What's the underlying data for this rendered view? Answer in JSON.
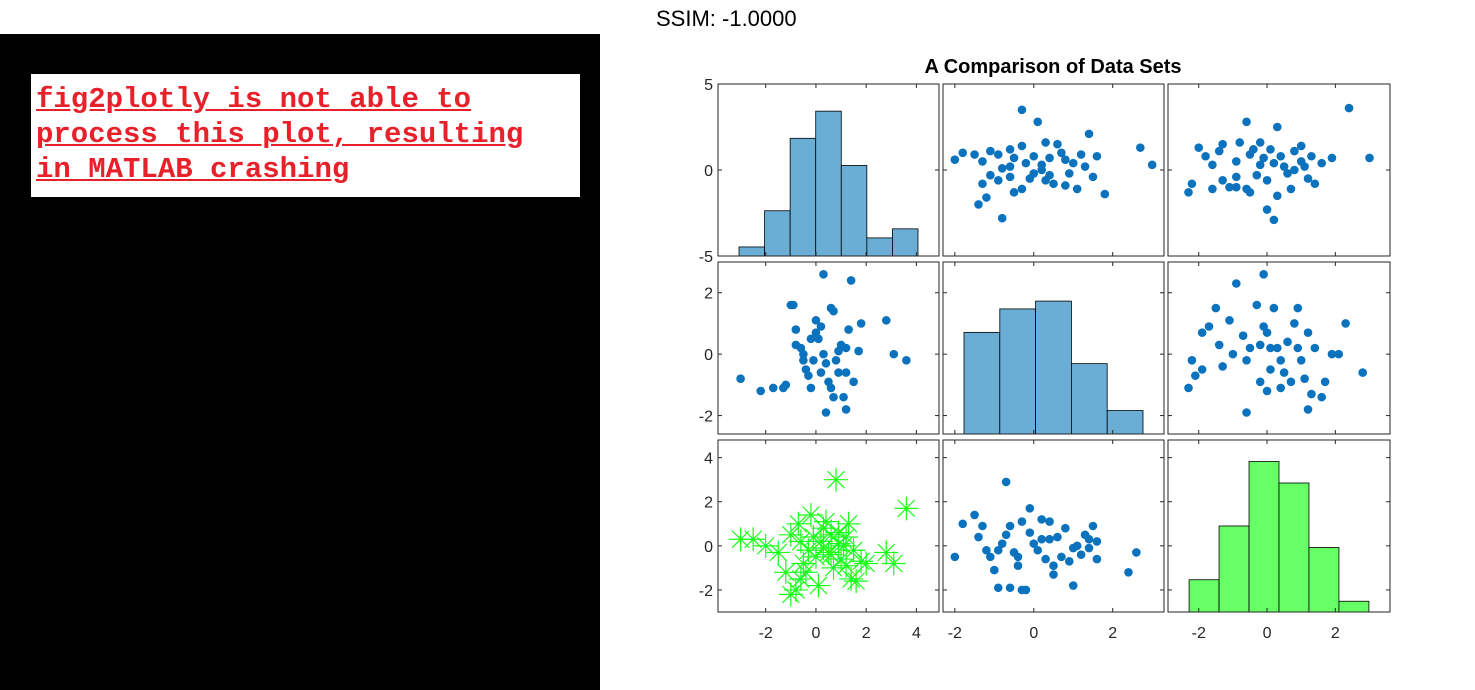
{
  "ssim_label": "SSIM: -1.0000",
  "error_message": "fig2plotly is not able to\nprocess this plot, resulting\nin MATLAB crashing",
  "colors": {
    "error_text": "#e8202a",
    "left_background": "#000000",
    "hist_fill": "#6aaed6",
    "hist_fill_green": "#66ff66",
    "scatter_blue": "#0b72bd",
    "marker_green": "#1aff1a"
  },
  "chart_data": {
    "type": "scatter",
    "layout": "3x3 plot matrix",
    "title": "A Comparison of Data Sets",
    "rows": [
      {
        "ylim": [
          -5,
          5
        ],
        "yticks": [
          -5,
          0,
          5
        ]
      },
      {
        "ylim": [
          -2.6,
          3.0
        ],
        "yticks": [
          -2,
          0,
          2
        ]
      },
      {
        "ylim": [
          -3.0,
          4.8
        ],
        "yticks": [
          -2,
          0,
          2,
          4
        ]
      }
    ],
    "cols": [
      {
        "xlim": [
          -3.9,
          4.9
        ],
        "xticks": [
          -2,
          0,
          2,
          4
        ]
      },
      {
        "xlim": [
          -2.3,
          3.3
        ],
        "xticks": [
          -2,
          0,
          2
        ]
      },
      {
        "xlim": [
          -2.9,
          3.6
        ],
        "xticks": [
          -2,
          0,
          2
        ]
      }
    ],
    "histograms": [
      {
        "row": 0,
        "col": 0,
        "edges": [
          -3,
          -2,
          -1,
          0,
          1,
          2,
          3,
          4
        ],
        "counts": [
          1,
          5,
          13,
          16,
          10,
          2,
          3
        ],
        "ymax": 19,
        "color": "#6aaed6"
      },
      {
        "row": 1,
        "col": 1,
        "edges": [
          -2,
          -1,
          0,
          1,
          2,
          3
        ],
        "counts": [
          13,
          16,
          17,
          9,
          3
        ],
        "ymax": 22,
        "color": "#6aaed6"
      },
      {
        "row": 2,
        "col": 2,
        "edges": [
          -3,
          -2,
          -1,
          0,
          1,
          2,
          3
        ],
        "counts": [
          3,
          8,
          14,
          12,
          6,
          1
        ],
        "ymax": 16,
        "color": "#66ff66"
      }
    ],
    "scatters": [
      {
        "row": 0,
        "col": 1,
        "marker": "dot",
        "color": "#0b72bd",
        "points": [
          [
            -2.0,
            0.6
          ],
          [
            -1.8,
            1.0
          ],
          [
            -1.5,
            0.9
          ],
          [
            -1.3,
            0.5
          ],
          [
            -1.1,
            1.1
          ],
          [
            -0.9,
            0.9
          ],
          [
            -0.8,
            0.1
          ],
          [
            -0.6,
            1.2
          ],
          [
            -0.5,
            0.7
          ],
          [
            -0.3,
            1.4
          ],
          [
            -0.2,
            0.4
          ],
          [
            0,
            0.8
          ],
          [
            0.2,
            0.3
          ],
          [
            0.4,
            0.7
          ],
          [
            0.6,
            1.5
          ],
          [
            0.8,
            0.6
          ],
          [
            1.0,
            0.4
          ],
          [
            1.2,
            0.9
          ],
          [
            1.4,
            2.1
          ],
          [
            1.6,
            0.8
          ],
          [
            -1.3,
            -0.8
          ],
          [
            -1.1,
            -0.3
          ],
          [
            -0.9,
            -0.6
          ],
          [
            -0.6,
            -0.4
          ],
          [
            -0.3,
            -1.1
          ],
          [
            0,
            -0.2
          ],
          [
            0.3,
            -0.6
          ],
          [
            0.5,
            -0.8
          ],
          [
            0.8,
            -0.9
          ],
          [
            1.1,
            -1.1
          ],
          [
            1.5,
            -0.4
          ],
          [
            1.8,
            -1.4
          ],
          [
            -0.5,
            -1.3
          ],
          [
            -1.4,
            -2.0
          ],
          [
            -1.2,
            -1.6
          ],
          [
            -0.8,
            -2.8
          ],
          [
            0.4,
            -0.3
          ],
          [
            0.9,
            -0.2
          ],
          [
            -0.3,
            3.5
          ],
          [
            0.1,
            2.8
          ],
          [
            0.3,
            1.6
          ],
          [
            0.7,
            1.0
          ],
          [
            2.7,
            1.3
          ],
          [
            3.0,
            0.3
          ],
          [
            -0.6,
            0.2
          ],
          [
            0.2,
            0.0
          ],
          [
            -0.1,
            -0.5
          ],
          [
            1.3,
            0.2
          ]
        ]
      },
      {
        "row": 0,
        "col": 2,
        "marker": "dot",
        "color": "#0b72bd",
        "points": [
          [
            -2.3,
            -1.3
          ],
          [
            -2.2,
            -0.8
          ],
          [
            -2.0,
            1.3
          ],
          [
            -1.8,
            0.8
          ],
          [
            -1.6,
            0.3
          ],
          [
            -1.4,
            1.1
          ],
          [
            -1.3,
            -0.6
          ],
          [
            -1.1,
            -1.0
          ],
          [
            -0.9,
            0.5
          ],
          [
            -0.8,
            1.6
          ],
          [
            -0.6,
            2.8
          ],
          [
            -0.5,
            0.9
          ],
          [
            -0.3,
            -0.3
          ],
          [
            -0.2,
            0.3
          ],
          [
            0,
            -0.6
          ],
          [
            0.1,
            1.2
          ],
          [
            0.2,
            0.4
          ],
          [
            0.3,
            -1.5
          ],
          [
            0.5,
            0.2
          ],
          [
            0.6,
            -0.2
          ],
          [
            0.8,
            1.1
          ],
          [
            1.0,
            0.5
          ],
          [
            1.1,
            0.2
          ],
          [
            1.3,
            0.8
          ],
          [
            1.4,
            -0.8
          ],
          [
            1.6,
            0.4
          ],
          [
            1.9,
            0.7
          ],
          [
            -0.9,
            -1.0
          ],
          [
            -0.5,
            -1.3
          ],
          [
            0,
            -2.3
          ],
          [
            0.2,
            -2.9
          ],
          [
            0.7,
            -1.1
          ],
          [
            -1.3,
            1.5
          ],
          [
            -0.9,
            -0.4
          ],
          [
            -0.4,
            1.2
          ],
          [
            0.3,
            2.5
          ],
          [
            1.0,
            1.4
          ],
          [
            3.0,
            0.7
          ],
          [
            2.4,
            3.6
          ],
          [
            -0.1,
            0.7
          ],
          [
            0.4,
            0.8
          ],
          [
            -0.6,
            -1.1
          ],
          [
            1.2,
            -0.5
          ],
          [
            -1.6,
            -1.1
          ],
          [
            0.8,
            0.0
          ],
          [
            -0.2,
            1.6
          ]
        ]
      },
      {
        "row": 1,
        "col": 0,
        "marker": "dot",
        "color": "#0b72bd",
        "points": [
          [
            -3.0,
            -0.8
          ],
          [
            -2.2,
            -1.2
          ],
          [
            -1.7,
            -1.1
          ],
          [
            -1.3,
            -1.1
          ],
          [
            -1.2,
            -1.0
          ],
          [
            -1.0,
            1.6
          ],
          [
            -0.9,
            1.6
          ],
          [
            -0.8,
            0.8
          ],
          [
            -0.6,
            0.2
          ],
          [
            -0.5,
            0.0
          ],
          [
            -0.4,
            -0.5
          ],
          [
            -0.3,
            -0.7
          ],
          [
            -0.2,
            0.5
          ],
          [
            -0.1,
            -0.2
          ],
          [
            0,
            1.1
          ],
          [
            0.1,
            0.5
          ],
          [
            0.2,
            0.9
          ],
          [
            0.3,
            0.0
          ],
          [
            0.4,
            -0.3
          ],
          [
            0.5,
            -0.9
          ],
          [
            0.6,
            1.5
          ],
          [
            0.7,
            -1.4
          ],
          [
            0.8,
            -0.2
          ],
          [
            0.9,
            0.1
          ],
          [
            1.0,
            0.3
          ],
          [
            1.1,
            -1.4
          ],
          [
            1.2,
            -0.6
          ],
          [
            1.3,
            0.8
          ],
          [
            1.4,
            2.4
          ],
          [
            1.5,
            -0.9
          ],
          [
            1.7,
            0.1
          ],
          [
            1.8,
            1.0
          ],
          [
            2.8,
            1.1
          ],
          [
            3.1,
            0.0
          ],
          [
            3.6,
            -0.2
          ],
          [
            0.2,
            -0.6
          ],
          [
            -0.5,
            -0.2
          ],
          [
            0.4,
            -1.9
          ],
          [
            0.6,
            -1.1
          ],
          [
            1.2,
            -1.8
          ],
          [
            0.3,
            2.6
          ],
          [
            -0.8,
            0.3
          ],
          [
            0.0,
            0.7
          ],
          [
            0.9,
            -0.6
          ],
          [
            1.2,
            0.2
          ],
          [
            0.7,
            1.4
          ],
          [
            -0.2,
            -1.1
          ]
        ]
      },
      {
        "row": 1,
        "col": 2,
        "marker": "dot",
        "color": "#0b72bd",
        "points": [
          [
            -2.3,
            -1.1
          ],
          [
            -2.2,
            -0.2
          ],
          [
            -2.1,
            -0.7
          ],
          [
            -1.9,
            -0.5
          ],
          [
            -1.9,
            0.7
          ],
          [
            -1.7,
            0.9
          ],
          [
            -1.5,
            1.5
          ],
          [
            -1.4,
            0.3
          ],
          [
            -1.3,
            -0.4
          ],
          [
            -1.1,
            1.1
          ],
          [
            -1.0,
            0.0
          ],
          [
            -0.9,
            2.3
          ],
          [
            -0.7,
            0.6
          ],
          [
            -0.6,
            -0.2
          ],
          [
            -0.5,
            0.2
          ],
          [
            -0.3,
            1.6
          ],
          [
            -0.2,
            -0.9
          ],
          [
            -0.1,
            0.9
          ],
          [
            0,
            -1.2
          ],
          [
            0.1,
            -0.5
          ],
          [
            0.2,
            1.5
          ],
          [
            0.3,
            0.2
          ],
          [
            0.4,
            -1.1
          ],
          [
            0.5,
            -0.6
          ],
          [
            0.6,
            0.4
          ],
          [
            0.7,
            -0.9
          ],
          [
            0.8,
            1.0
          ],
          [
            0.9,
            0.2
          ],
          [
            1.0,
            -0.2
          ],
          [
            1.1,
            -0.8
          ],
          [
            1.2,
            0.7
          ],
          [
            1.3,
            -1.3
          ],
          [
            1.4,
            0.2
          ],
          [
            1.6,
            -1.4
          ],
          [
            1.7,
            -0.9
          ],
          [
            1.9,
            0.0
          ],
          [
            2.1,
            0.0
          ],
          [
            2.3,
            1.0
          ],
          [
            2.8,
            -0.6
          ],
          [
            -0.1,
            2.6
          ],
          [
            0.9,
            1.5
          ],
          [
            1.2,
            -1.8
          ],
          [
            0.0,
            0.7
          ],
          [
            -0.6,
            -1.9
          ],
          [
            0.4,
            -0.2
          ],
          [
            0.1,
            0.2
          ],
          [
            -0.2,
            0.3
          ]
        ]
      },
      {
        "row": 2,
        "col": 0,
        "marker": "asterisk",
        "color": "#1aff1a",
        "points": [
          [
            -3.0,
            0.3
          ],
          [
            -2.5,
            0.3
          ],
          [
            -2.0,
            0.0
          ],
          [
            -1.5,
            -0.3
          ],
          [
            -1.2,
            -1.2
          ],
          [
            -1.0,
            -2.2
          ],
          [
            -0.8,
            -2.0
          ],
          [
            -0.6,
            -1.5
          ],
          [
            -0.5,
            -0.8
          ],
          [
            -0.3,
            -0.2
          ],
          [
            -0.1,
            0.4
          ],
          [
            0,
            -0.5
          ],
          [
            0.2,
            0.2
          ],
          [
            0.3,
            0.8
          ],
          [
            0.4,
            1.1
          ],
          [
            0.5,
            -0.3
          ],
          [
            0.6,
            0.5
          ],
          [
            0.7,
            -1.0
          ],
          [
            0.8,
            3.0
          ],
          [
            0.9,
            0.6
          ],
          [
            1.0,
            -0.6
          ],
          [
            1.1,
            0.0
          ],
          [
            1.2,
            -0.9
          ],
          [
            1.3,
            1.0
          ],
          [
            1.4,
            -1.5
          ],
          [
            1.5,
            -0.2
          ],
          [
            1.6,
            -1.6
          ],
          [
            1.8,
            -0.7
          ],
          [
            2.0,
            -0.8
          ],
          [
            2.8,
            -0.3
          ],
          [
            3.1,
            -0.8
          ],
          [
            3.6,
            1.7
          ],
          [
            -0.7,
            1.0
          ],
          [
            -0.2,
            1.4
          ],
          [
            0.1,
            -1.8
          ],
          [
            0.9,
            0.1
          ],
          [
            -1.0,
            0.5
          ],
          [
            -0.4,
            -1.2
          ],
          [
            0.3,
            -0.1
          ],
          [
            1.2,
            0.4
          ],
          [
            0.6,
            -0.4
          ],
          [
            -0.6,
            0.2
          ]
        ]
      },
      {
        "row": 2,
        "col": 1,
        "marker": "dot",
        "color": "#0b72bd",
        "points": [
          [
            -2.0,
            -0.5
          ],
          [
            -1.8,
            1.0
          ],
          [
            -1.5,
            1.4
          ],
          [
            -1.3,
            0.9
          ],
          [
            -1.2,
            -0.2
          ],
          [
            -1.1,
            -0.5
          ],
          [
            -1.0,
            -1.1
          ],
          [
            -0.9,
            -0.2
          ],
          [
            -0.8,
            0.1
          ],
          [
            -0.7,
            0.5
          ],
          [
            -0.6,
            0.9
          ],
          [
            -0.5,
            -0.3
          ],
          [
            -0.4,
            -0.9
          ],
          [
            -0.3,
            1.1
          ],
          [
            -0.2,
            -2.0
          ],
          [
            -0.1,
            0.6
          ],
          [
            0,
            0.1
          ],
          [
            0.1,
            -0.2
          ],
          [
            0.2,
            0.3
          ],
          [
            0.3,
            -0.6
          ],
          [
            0.4,
            1.1
          ],
          [
            0.5,
            -1.3
          ],
          [
            0.6,
            0.4
          ],
          [
            0.7,
            -0.5
          ],
          [
            0.8,
            0.8
          ],
          [
            0.9,
            -0.7
          ],
          [
            1.0,
            -0.1
          ],
          [
            1.1,
            0.0
          ],
          [
            1.2,
            -0.4
          ],
          [
            1.3,
            0.5
          ],
          [
            1.4,
            -0.1
          ],
          [
            1.5,
            0.9
          ],
          [
            1.6,
            -0.6
          ],
          [
            2.4,
            -1.2
          ],
          [
            2.6,
            -0.3
          ],
          [
            -0.7,
            2.9
          ],
          [
            -0.9,
            -1.9
          ],
          [
            -0.6,
            -1.9
          ],
          [
            -0.3,
            -2.0
          ],
          [
            -0.1,
            1.7
          ],
          [
            0.2,
            1.2
          ],
          [
            0.5,
            -0.9
          ],
          [
            1.0,
            -1.8
          ],
          [
            1.4,
            0.3
          ],
          [
            -1.4,
            0.4
          ],
          [
            0.4,
            0.3
          ],
          [
            -0.4,
            -0.5
          ],
          [
            1.6,
            0.2
          ]
        ]
      }
    ]
  }
}
